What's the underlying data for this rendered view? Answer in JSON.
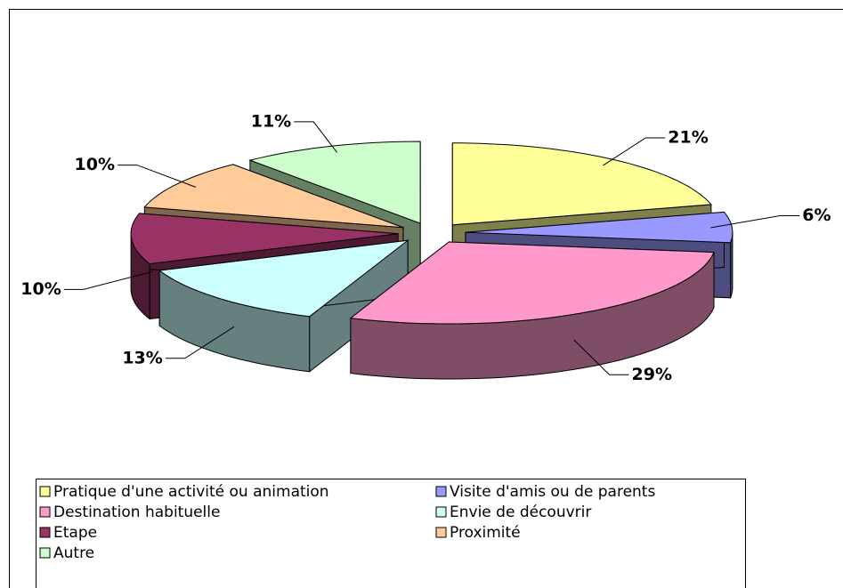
{
  "chart_data": {
    "type": "pie3d",
    "categories": [
      "Pratique d'une activité ou animation",
      "Visite d'amis ou de parents",
      "Destination habituelle",
      "Envie de découvrir",
      "Etape",
      "Proximité",
      "Autre"
    ],
    "values": [
      21,
      6,
      29,
      13,
      10,
      10,
      11
    ],
    "value_labels": [
      "21%",
      "6%",
      "29%",
      "13%",
      "10%",
      "10%",
      "11%"
    ],
    "colors": [
      "#ffff99",
      "#9999ff",
      "#ff99cc",
      "#ccffff",
      "#993366",
      "#ffcc99",
      "#ccffcc"
    ],
    "legend": "bottom"
  }
}
